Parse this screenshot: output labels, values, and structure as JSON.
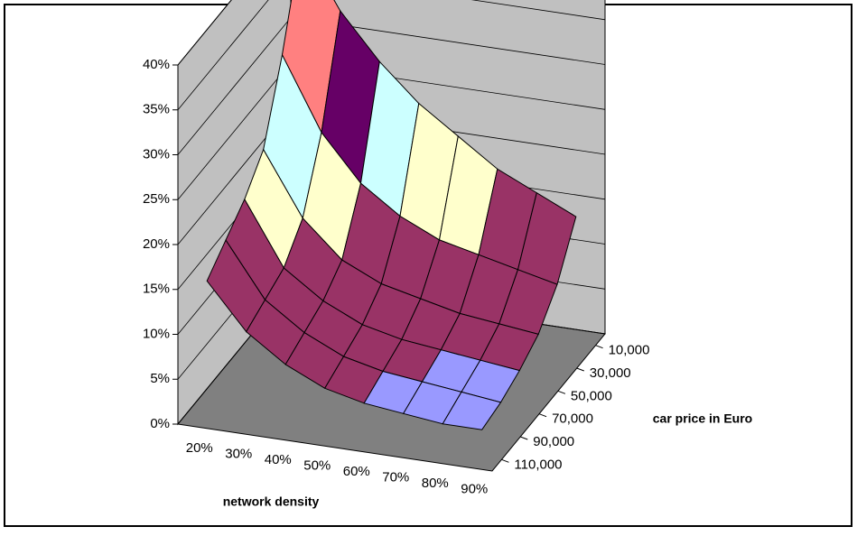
{
  "chart_data": {
    "type": "surface",
    "x_title": "network density",
    "depth_title": "car price in Euro",
    "categories": [
      "20%",
      "30%",
      "40%",
      "50%",
      "60%",
      "70%",
      "80%",
      "90%"
    ],
    "series": [
      {
        "name": "10,000",
        "values": [
          40,
          33,
          28,
          24,
          21,
          18,
          16,
          14
        ]
      },
      {
        "name": "30,000",
        "values": [
          30,
          22,
          17,
          14,
          12,
          11,
          10,
          9
        ]
      },
      {
        "name": "50,000",
        "values": [
          22,
          15,
          11,
          9,
          8,
          7,
          6.5,
          6
        ]
      },
      {
        "name": "70,000",
        "values": [
          19,
          12,
          9,
          7,
          6,
          5.5,
          5,
          4.5
        ]
      },
      {
        "name": "90,000",
        "values": [
          17,
          11,
          8,
          6,
          5,
          4.5,
          4,
          3.5
        ]
      },
      {
        "name": "110,000",
        "values": [
          15,
          10,
          7,
          5,
          4,
          3.5,
          3,
          3
        ]
      }
    ],
    "ylim": [
      0,
      40
    ],
    "yticks": [
      {
        "value": 0,
        "label": "0%"
      },
      {
        "value": 5,
        "label": "5%"
      },
      {
        "value": 10,
        "label": "10%"
      },
      {
        "value": 15,
        "label": "15%"
      },
      {
        "value": 20,
        "label": "20%"
      },
      {
        "value": 25,
        "label": "25%"
      },
      {
        "value": 30,
        "label": "30%"
      },
      {
        "value": 35,
        "label": "35%"
      },
      {
        "value": 40,
        "label": "40%"
      }
    ],
    "band_colors": [
      "#9999ff",
      "#993366",
      "#993366",
      "#ffffcc",
      "#ccffff",
      "#660066",
      "#ff8080",
      "#0066cc"
    ],
    "wall_color": "#c0c0c0",
    "floor_color": "#808080",
    "grid": true
  }
}
